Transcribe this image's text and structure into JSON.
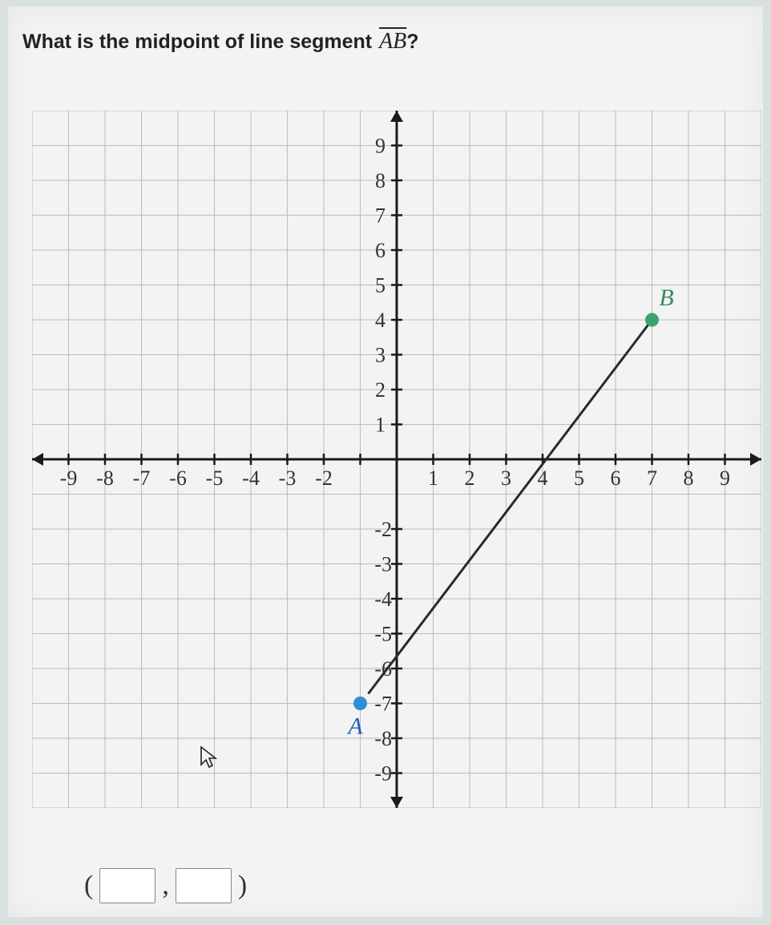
{
  "question": {
    "prefix": "What is the midpoint of line segment ",
    "segment": "AB",
    "suffix": "?"
  },
  "chart": {
    "type": "scatter-line",
    "xlim": [
      -10,
      10
    ],
    "ylim": [
      -10,
      10
    ],
    "xtick_labels": [
      "-9",
      "-8",
      "-7",
      "-6",
      "-5",
      "-4",
      "-3",
      "-2",
      "",
      "1",
      "2",
      "3",
      "4",
      "5",
      "6",
      "7",
      "8",
      "9"
    ],
    "xtick_positions": [
      -9,
      -8,
      -7,
      -6,
      -5,
      -4,
      -3,
      -2,
      -1,
      1,
      2,
      3,
      4,
      5,
      6,
      7,
      8,
      9
    ],
    "ytick_labels_pos": [
      "1",
      "2",
      "3",
      "4",
      "5",
      "6",
      "7",
      "8",
      "9"
    ],
    "ytick_labels_neg": [
      "-2",
      "-3",
      "-4",
      "-5",
      "-6",
      "-7",
      "-8",
      "-9"
    ],
    "ytick_positions_pos": [
      1,
      2,
      3,
      4,
      5,
      6,
      7,
      8,
      9
    ],
    "ytick_positions_neg": [
      -2,
      -3,
      -4,
      -5,
      -6,
      -7,
      -8,
      -9
    ],
    "background_color": "#f2f3f2",
    "grid_color": "#b8bdbc",
    "axis_color": "#1a1a1a",
    "axis_width": 3,
    "tick_font_size": 26,
    "tick_color": "#333333",
    "series": {
      "line_color": "#2a2a2a",
      "line_width": 3,
      "points": [
        {
          "x": -1,
          "y": -7,
          "label": "A",
          "label_color": "#1d5fbf",
          "dot_color": "#2e8fd6"
        },
        {
          "x": 7,
          "y": 4,
          "label": "B",
          "label_color": "#358a5e",
          "dot_color": "#3aa36f"
        }
      ],
      "dot_radius": 8
    },
    "label_font_size": 30
  },
  "answer": {
    "open": "(",
    "sep": ",",
    "close": ")",
    "x_placeholder": "",
    "y_placeholder": ""
  }
}
